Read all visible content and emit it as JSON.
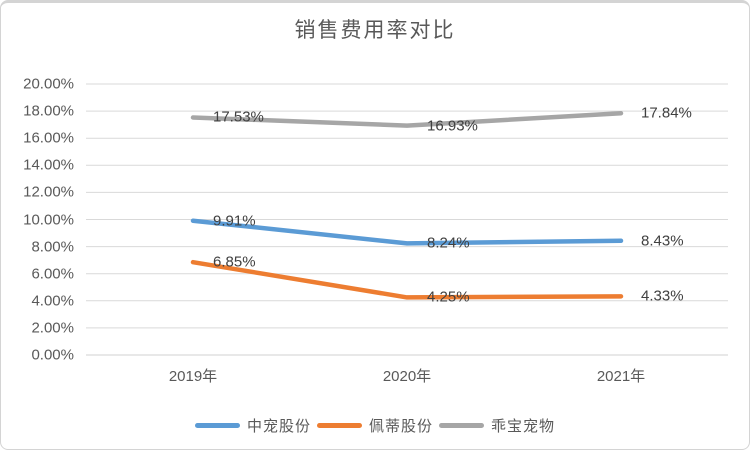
{
  "title": "销售费用率对比",
  "chart_data": {
    "type": "line",
    "title": "销售费用率对比",
    "categories": [
      "2019年",
      "2020年",
      "2021年"
    ],
    "series": [
      {
        "name": "中宠股份",
        "color": "#5B9BD5",
        "values": [
          9.91,
          8.24,
          8.43
        ],
        "labels": [
          "9.91%",
          "8.24%",
          "8.43%"
        ]
      },
      {
        "name": "佩蒂股份",
        "color": "#ED7D31",
        "values": [
          6.85,
          4.25,
          4.33
        ],
        "labels": [
          "6.85%",
          "4.25%",
          "4.33%"
        ]
      },
      {
        "name": "乖宝宠物",
        "color": "#A6A6A6",
        "values": [
          17.53,
          16.93,
          17.84
        ],
        "labels": [
          "17.53%",
          "16.93%",
          "17.84%"
        ]
      }
    ],
    "xlabel": "",
    "ylabel": "",
    "ylim": [
      0,
      20
    ],
    "y_tick_step": 2,
    "y_tick_labels": [
      "0.00%",
      "2.00%",
      "4.00%",
      "6.00%",
      "8.00%",
      "10.00%",
      "12.00%",
      "14.00%",
      "16.00%",
      "18.00%",
      "20.00%"
    ],
    "grid": true,
    "legend_position": "bottom",
    "colors": {
      "gridline": "#D9D9D9",
      "axis_line": "#D0D0D0",
      "axis_text": "#595959",
      "data_label_text": "#404040",
      "title_text": "#595959",
      "card_border": "#D4D4D4",
      "background": "#FFFFFF"
    }
  }
}
